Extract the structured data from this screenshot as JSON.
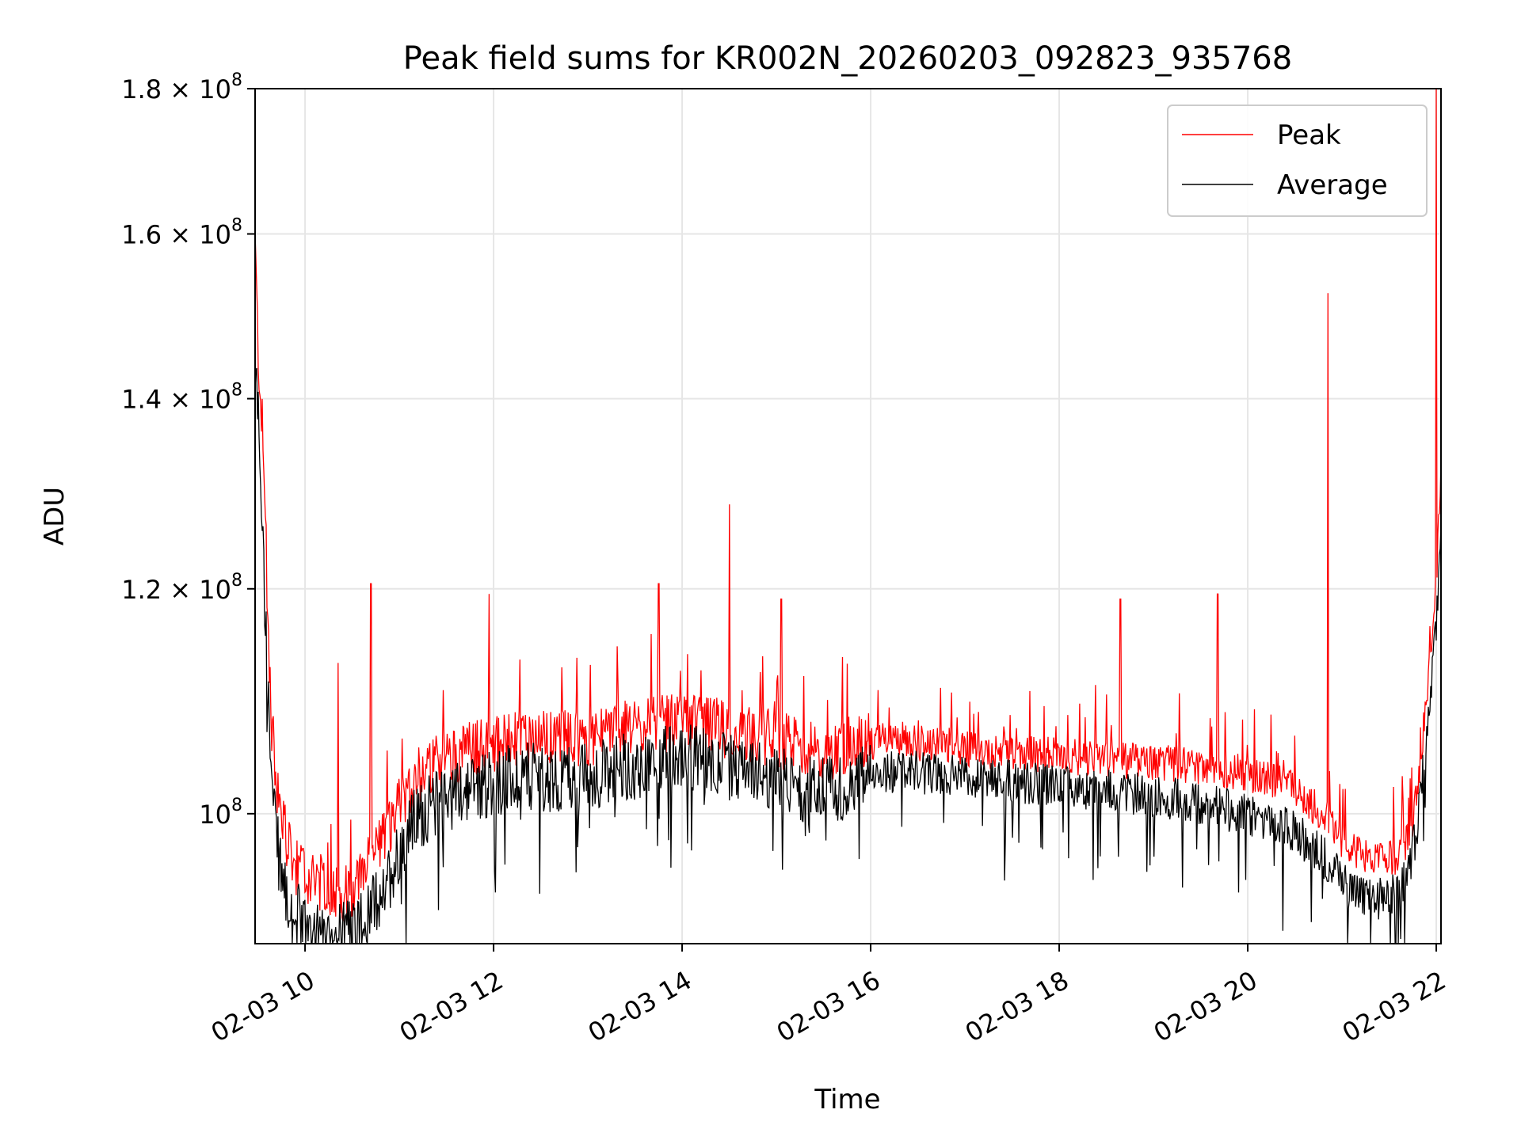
{
  "chart_data": {
    "type": "line",
    "title": "Peak field sums for KR002N_20260203_092823_935768",
    "xlabel": "Time",
    "ylabel": "ADU",
    "y_scale": "log",
    "ylim": [
      90000000,
      180000000
    ],
    "xlim": [
      9.47,
      22.05
    ],
    "grid": true,
    "legend_position": "top-right",
    "x_ticks": [
      {
        "value": 10,
        "label": "02-03 10"
      },
      {
        "value": 12,
        "label": "02-03 12"
      },
      {
        "value": 14,
        "label": "02-03 14"
      },
      {
        "value": 16,
        "label": "02-03 16"
      },
      {
        "value": 18,
        "label": "02-03 18"
      },
      {
        "value": 20,
        "label": "02-03 20"
      },
      {
        "value": 22,
        "label": "02-03 22"
      }
    ],
    "y_ticks": [
      {
        "value": 100000000,
        "base": "10",
        "exp": "8",
        "mantissa": ""
      },
      {
        "value": 120000000,
        "base": "10",
        "exp": "8",
        "mantissa": "1.2 × "
      },
      {
        "value": 140000000,
        "base": "10",
        "exp": "8",
        "mantissa": "1.4 × "
      },
      {
        "value": 160000000,
        "base": "10",
        "exp": "8",
        "mantissa": "1.6 × "
      },
      {
        "value": 180000000,
        "base": "10",
        "exp": "8",
        "mantissa": "1.8 × "
      }
    ],
    "series": [
      {
        "name": "Peak",
        "color": "#ff0000",
        "x": [
          9.47,
          9.5,
          9.55,
          9.6,
          9.65,
          9.7,
          9.75,
          9.8,
          9.85,
          9.9,
          9.95,
          10.0,
          10.1,
          10.2,
          10.3,
          10.4,
          10.5,
          10.6,
          10.7,
          10.8,
          10.9,
          11.0,
          11.1,
          11.2,
          11.3,
          11.4,
          11.5,
          11.6,
          11.7,
          11.8,
          11.9,
          12.0,
          12.2,
          12.4,
          12.6,
          12.8,
          13.0,
          13.2,
          13.4,
          13.6,
          13.8,
          14.0,
          14.2,
          14.4,
          14.6,
          14.8,
          15.0,
          15.2,
          15.4,
          15.6,
          15.8,
          16.0,
          16.2,
          16.5,
          16.8,
          17.0,
          17.3,
          17.6,
          18.0,
          18.3,
          18.6,
          19.0,
          19.3,
          19.6,
          19.9,
          20.2,
          20.5,
          20.8,
          21.0,
          21.2,
          21.4,
          21.6,
          21.7,
          21.8,
          21.9,
          22.0,
          22.05
        ],
        "y": [
          158000000,
          145000000,
          135000000,
          118000000,
          106000000,
          102000000,
          99000000,
          97000000,
          96000000,
          95000000,
          95000000,
          94500000,
          94000000,
          93800000,
          93500000,
          93200000,
          93500000,
          94500000,
          95500000,
          97000000,
          98500000,
          100000000,
          101500000,
          102500000,
          103000000,
          103500000,
          103800000,
          104200000,
          104500000,
          104800000,
          105000000,
          105000000,
          105300000,
          105600000,
          105400000,
          105500000,
          105500000,
          106000000,
          106300000,
          106500000,
          106800000,
          107000000,
          106800000,
          106500000,
          106000000,
          105800000,
          105500000,
          105000000,
          104500000,
          104500000,
          105000000,
          105500000,
          105600000,
          105400000,
          105200000,
          105000000,
          104800000,
          104600000,
          104300000,
          104200000,
          104000000,
          103800000,
          103600000,
          103300000,
          103000000,
          102500000,
          101500000,
          99500000,
          97500000,
          96200000,
          95800000,
          96200000,
          97500000,
          101000000,
          110000000,
          120000000,
          131000000
        ],
        "spikes": [
          {
            "x": 10.35,
            "y": 113000000
          },
          {
            "x": 10.7,
            "y": 120500000
          },
          {
            "x": 11.95,
            "y": 119500000
          },
          {
            "x": 13.75,
            "y": 120500000
          },
          {
            "x": 14.5,
            "y": 128500000
          },
          {
            "x": 15.05,
            "y": 119000000
          },
          {
            "x": 18.65,
            "y": 119000000
          },
          {
            "x": 19.68,
            "y": 119500000
          },
          {
            "x": 20.85,
            "y": 152500000
          },
          {
            "x": 22.0,
            "y": 180000000
          }
        ]
      },
      {
        "name": "Average",
        "color": "#000000",
        "x": [
          9.47,
          9.5,
          9.55,
          9.6,
          9.65,
          9.7,
          9.75,
          9.8,
          9.85,
          9.9,
          9.95,
          10.0,
          10.1,
          10.2,
          10.3,
          10.4,
          10.5,
          10.6,
          10.7,
          10.8,
          10.9,
          11.0,
          11.1,
          11.2,
          11.3,
          11.4,
          11.5,
          11.6,
          11.7,
          11.8,
          11.9,
          12.0,
          12.2,
          12.4,
          12.6,
          12.8,
          13.0,
          13.2,
          13.4,
          13.6,
          13.8,
          14.0,
          14.2,
          14.4,
          14.6,
          14.8,
          15.0,
          15.2,
          15.4,
          15.6,
          15.8,
          16.0,
          16.2,
          16.5,
          16.8,
          17.0,
          17.3,
          17.6,
          18.0,
          18.3,
          18.6,
          19.0,
          19.3,
          19.6,
          19.9,
          20.2,
          20.5,
          20.8,
          21.0,
          21.2,
          21.4,
          21.6,
          21.7,
          21.8,
          21.9,
          22.0,
          22.05
        ],
        "y": [
          143000000,
          140000000,
          125000000,
          112000000,
          102000000,
          98000000,
          95500000,
          94000000,
          93000000,
          92500000,
          92000000,
          91800000,
          91500000,
          91300000,
          91200000,
          91000000,
          91200000,
          92000000,
          92800000,
          94000000,
          95500000,
          97500000,
          99000000,
          100000000,
          100700000,
          101200000,
          101600000,
          102000000,
          102300000,
          102600000,
          102800000,
          102900000,
          103200000,
          103400000,
          103300000,
          103300000,
          103400000,
          103800000,
          104200000,
          104500000,
          104800000,
          105000000,
          104800000,
          104400000,
          103900000,
          103600000,
          103200000,
          102700000,
          102200000,
          102300000,
          102900000,
          103500000,
          103700000,
          103600000,
          103400000,
          103200000,
          103000000,
          102800000,
          102500000,
          102300000,
          102000000,
          101700000,
          101300000,
          100800000,
          100300000,
          99700000,
          98700000,
          96800000,
          94800000,
          93700000,
          93500000,
          94000000,
          95500000,
          99000000,
          107000000,
          116000000,
          126000000
        ]
      }
    ]
  }
}
